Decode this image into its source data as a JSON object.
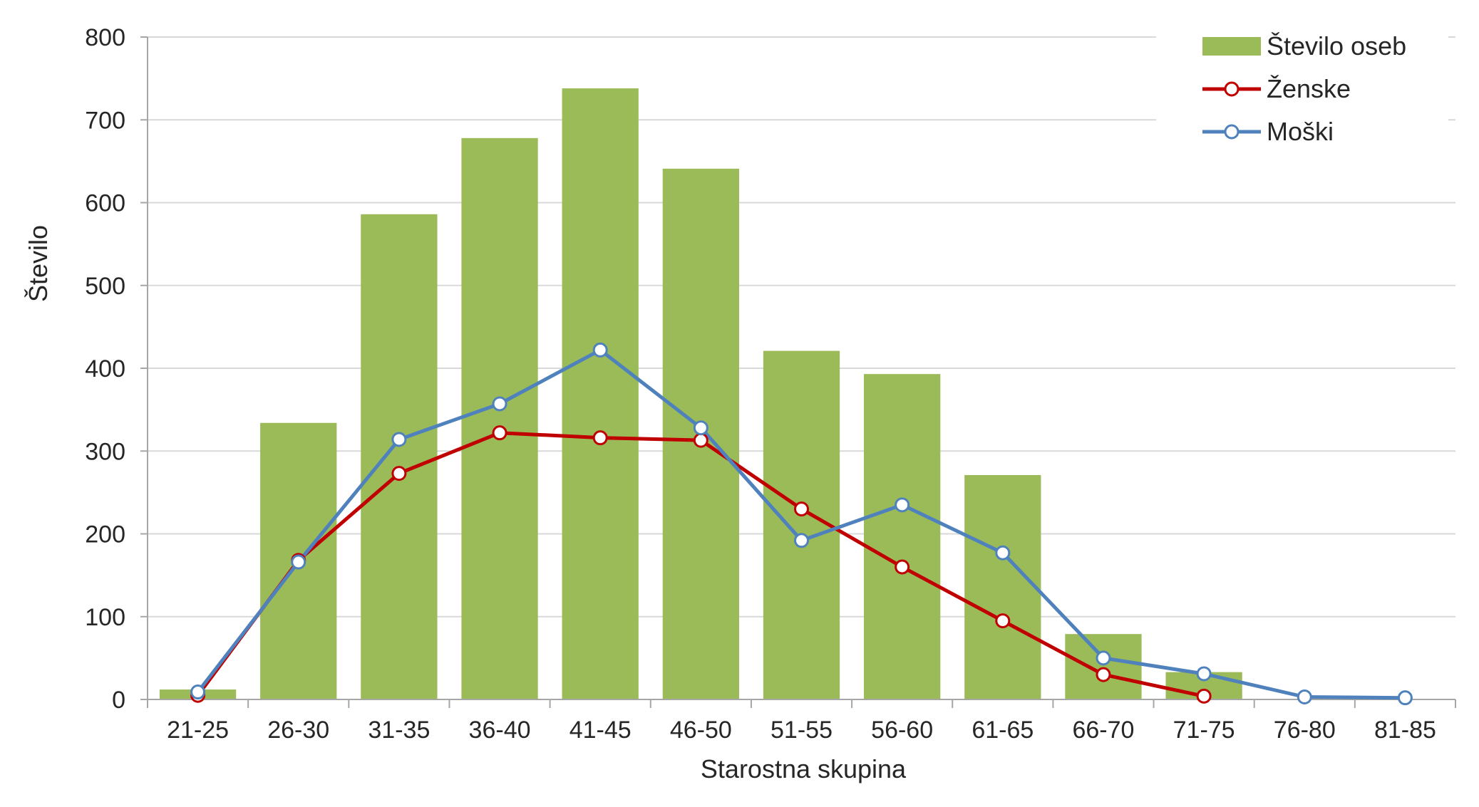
{
  "chart_data": {
    "type": "bar",
    "title": "",
    "xlabel": "Starostna skupina",
    "ylabel": "Število",
    "ylim": [
      0,
      800
    ],
    "y_ticks": [
      "0",
      "100",
      "200",
      "300",
      "400",
      "500",
      "600",
      "700",
      "800"
    ],
    "grid": true,
    "legend_position": "top-right",
    "categories": [
      "21-25",
      "26-30",
      "31-35",
      "36-40",
      "41-45",
      "46-50",
      "51-55",
      "56-60",
      "61-65",
      "66-70",
      "71-75",
      "76-80",
      "81-85"
    ],
    "series": [
      {
        "name": "Število oseb",
        "kind": "bar",
        "color": "#9bbb59",
        "values": [
          12,
          334,
          586,
          678,
          738,
          641,
          421,
          393,
          271,
          79,
          33,
          null,
          null
        ]
      },
      {
        "name": "Ženske",
        "kind": "line",
        "color": "#c00000",
        "values": [
          5,
          168,
          273,
          322,
          316,
          313,
          230,
          160,
          95,
          30,
          4,
          null,
          null
        ]
      },
      {
        "name": "Moški",
        "kind": "line",
        "color": "#4f81bd",
        "values": [
          9,
          166,
          314,
          357,
          422,
          328,
          192,
          235,
          177,
          50,
          31,
          3,
          2
        ]
      }
    ]
  }
}
